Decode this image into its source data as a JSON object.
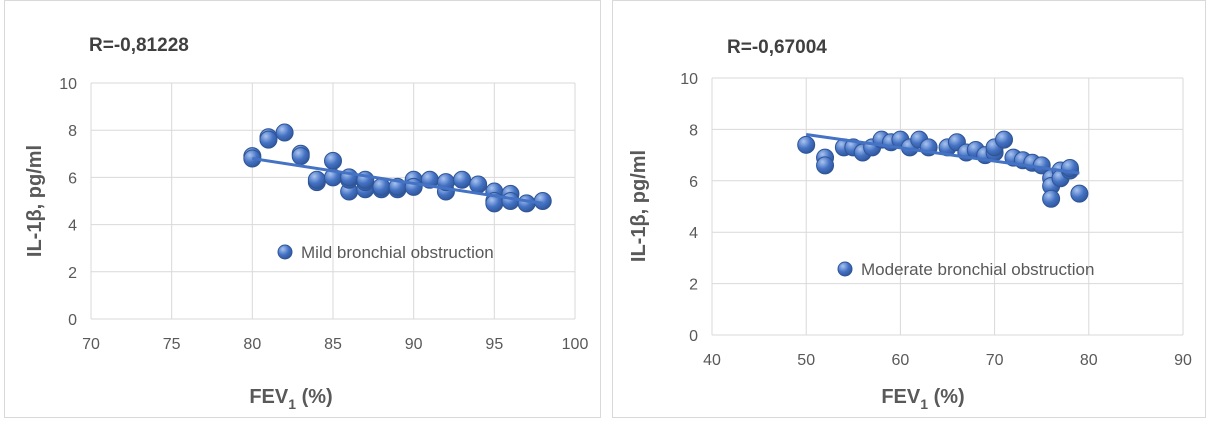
{
  "colors": {
    "marker_fill": "#4472c4",
    "marker_edge": "#2f5597",
    "trendline": "#4472c4",
    "grid": "#d9d9d9",
    "text": "#595959",
    "title_text": "#404040"
  },
  "chart_data": [
    {
      "type": "scatter",
      "title": "R=-0,81228",
      "xlabel": "FEV",
      "xlabel_sub": "1",
      "xlabel_suffix": " (%)",
      "ylabel": "IL-1β, pg/ml",
      "xlim": [
        70,
        100
      ],
      "ylim": [
        0,
        10
      ],
      "xticks": [
        70,
        75,
        80,
        85,
        90,
        95,
        100
      ],
      "yticks": [
        0,
        2,
        4,
        6,
        8,
        10
      ],
      "grid": true,
      "legend_position": "right",
      "series": [
        {
          "name": "Mild bronchial obstruction",
          "points": [
            [
              80,
              6.9
            ],
            [
              80,
              6.8
            ],
            [
              81,
              7.7
            ],
            [
              81,
              7.6
            ],
            [
              82,
              7.9
            ],
            [
              83,
              7.0
            ],
            [
              83,
              6.9
            ],
            [
              84,
              5.8
            ],
            [
              84,
              5.9
            ],
            [
              85,
              6.7
            ],
            [
              85,
              6.0
            ],
            [
              86,
              5.4
            ],
            [
              86,
              5.9
            ],
            [
              86,
              6.0
            ],
            [
              87,
              5.5
            ],
            [
              87,
              5.8
            ],
            [
              87,
              5.9
            ],
            [
              88,
              5.5
            ],
            [
              88,
              5.6
            ],
            [
              89,
              5.5
            ],
            [
              89,
              5.6
            ],
            [
              90,
              5.9
            ],
            [
              90,
              5.6
            ],
            [
              91,
              5.9
            ],
            [
              92,
              5.4
            ],
            [
              92,
              5.8
            ],
            [
              93,
              5.9
            ],
            [
              94,
              5.7
            ],
            [
              95,
              5.4
            ],
            [
              95,
              5.0
            ],
            [
              95,
              4.9
            ],
            [
              96,
              5.3
            ],
            [
              96,
              5.0
            ],
            [
              97,
              4.9
            ],
            [
              98,
              5.0
            ]
          ],
          "trendline": {
            "type": "linear",
            "from": [
              80,
              6.8
            ],
            "to": [
              98,
              4.9
            ]
          }
        }
      ]
    },
    {
      "type": "scatter",
      "title": "R=-0,67004",
      "xlabel": "FEV",
      "xlabel_sub": "1",
      "xlabel_suffix": " (%)",
      "ylabel": "IL-1β, pg/ml",
      "xlim": [
        40,
        90
      ],
      "ylim": [
        0,
        10
      ],
      "xticks": [
        40,
        50,
        60,
        70,
        80,
        90
      ],
      "yticks": [
        0,
        2,
        4,
        6,
        8,
        10
      ],
      "grid": true,
      "legend_position": "bottom-right",
      "series": [
        {
          "name": "Moderate bronchial obstruction",
          "points": [
            [
              50,
              7.4
            ],
            [
              52,
              6.9
            ],
            [
              52,
              6.6
            ],
            [
              54,
              7.3
            ],
            [
              55,
              7.3
            ],
            [
              56,
              7.1
            ],
            [
              57,
              7.3
            ],
            [
              58,
              7.6
            ],
            [
              59,
              7.5
            ],
            [
              60,
              7.6
            ],
            [
              61,
              7.3
            ],
            [
              62,
              7.6
            ],
            [
              63,
              7.3
            ],
            [
              65,
              7.3
            ],
            [
              66,
              7.5
            ],
            [
              67,
              7.1
            ],
            [
              68,
              7.2
            ],
            [
              69,
              7.0
            ],
            [
              70,
              7.1
            ],
            [
              70,
              7.3
            ],
            [
              71,
              7.6
            ],
            [
              72,
              6.9
            ],
            [
              73,
              6.8
            ],
            [
              74,
              6.7
            ],
            [
              75,
              6.6
            ],
            [
              76,
              6.1
            ],
            [
              76,
              5.8
            ],
            [
              76,
              5.3
            ],
            [
              77,
              6.4
            ],
            [
              77,
              6.1
            ],
            [
              78,
              6.4
            ],
            [
              78,
              6.5
            ],
            [
              79,
              5.5
            ]
          ],
          "trendline": {
            "type": "linear",
            "from": [
              50,
              7.8
            ],
            "to": [
              79,
              6.3
            ]
          }
        }
      ]
    }
  ]
}
